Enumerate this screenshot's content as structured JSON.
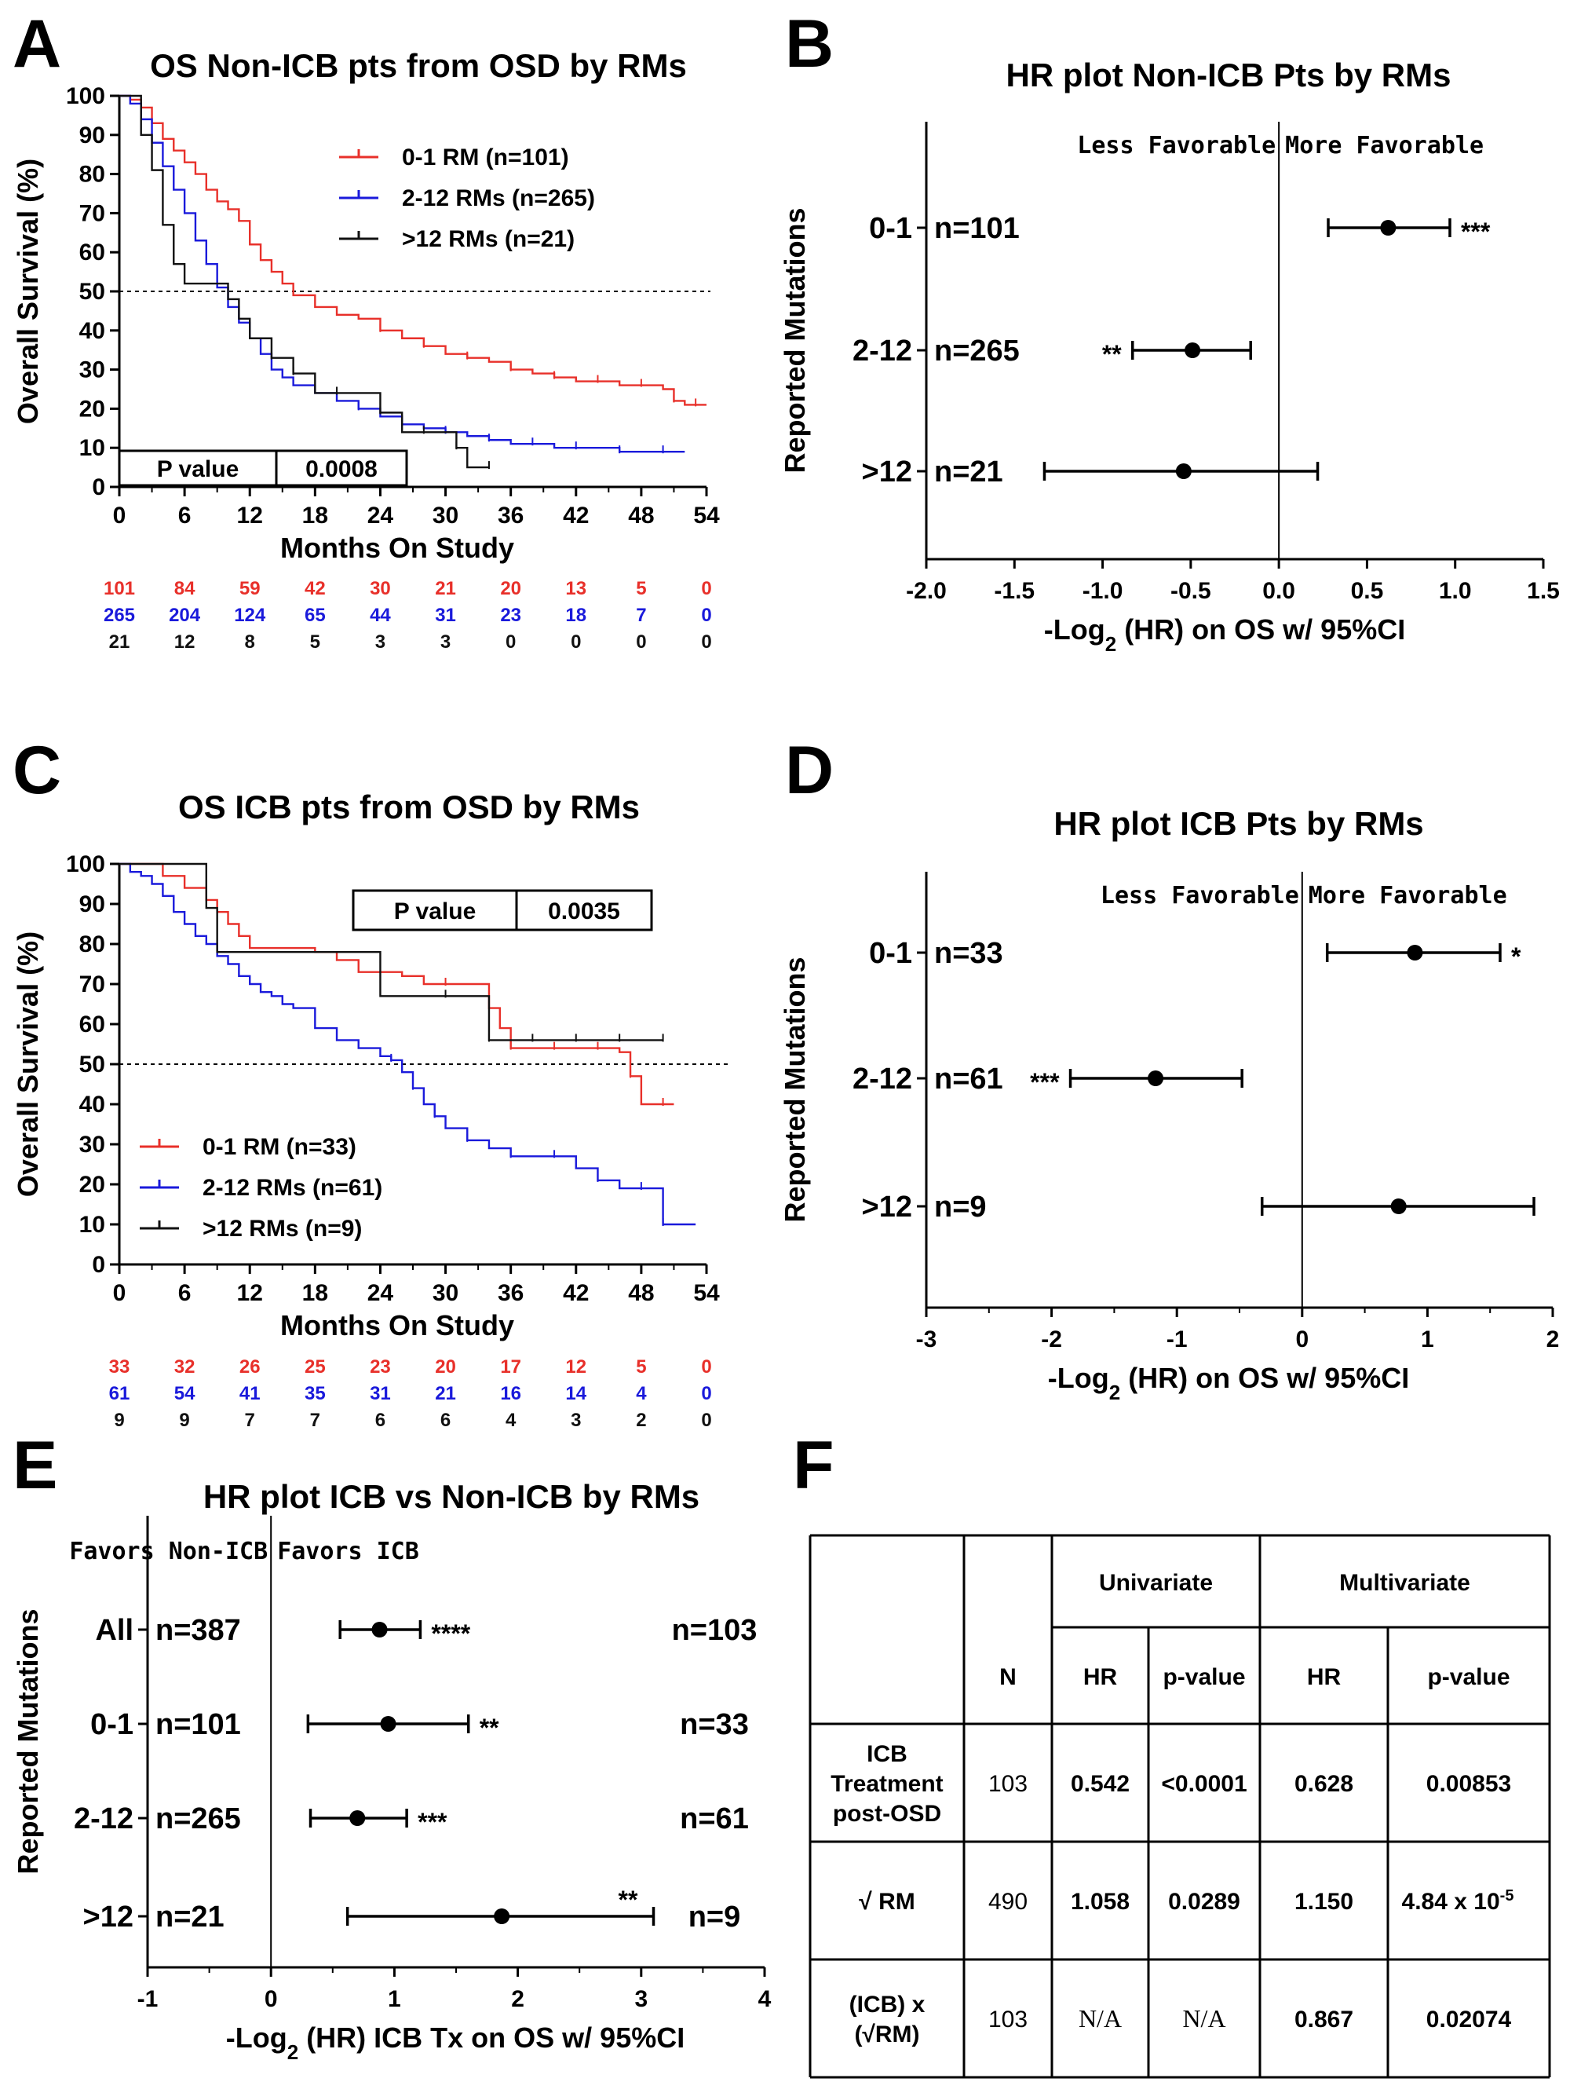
{
  "chart_data": [
    {
      "id": "A",
      "type": "line",
      "panel_letter": "A",
      "title": "OS Non-ICB pts from OSD by RMs",
      "xlabel": "Months On Study",
      "ylabel": "Overall Survival (%)",
      "xlim": [
        0,
        54
      ],
      "ylim": [
        0,
        100
      ],
      "xticks": [
        0,
        6,
        12,
        18,
        24,
        30,
        36,
        42,
        48,
        54
      ],
      "yticks": [
        0,
        10,
        20,
        30,
        40,
        50,
        60,
        70,
        80,
        90,
        100
      ],
      "reference_line_y": 50,
      "legend_placement": "top-right",
      "p_value_label": "P value",
      "p_value": "0.0008",
      "series": [
        {
          "name": "0-1 RM (n=101)",
          "color": "#e8302a",
          "x": [
            0,
            1,
            2,
            3,
            4,
            5,
            6,
            7,
            8,
            9,
            10,
            11,
            12,
            13,
            14,
            15,
            16,
            18,
            20,
            22,
            24,
            26,
            28,
            30,
            32,
            34,
            36,
            38,
            40,
            42,
            44,
            46,
            48,
            50,
            51,
            52,
            53,
            54
          ],
          "y": [
            100,
            99,
            97,
            93,
            89,
            86,
            83,
            80,
            76,
            73,
            71,
            68,
            62,
            58,
            55,
            52,
            49,
            46,
            44,
            43,
            40,
            38,
            36,
            34,
            33,
            32,
            30,
            29,
            28,
            27,
            27,
            26,
            26,
            25,
            22,
            21,
            21,
            21
          ],
          "at_risk": [
            101,
            84,
            59,
            42,
            30,
            21,
            20,
            13,
            5,
            0
          ]
        },
        {
          "name": "2-12 RMs (n=265)",
          "color": "#1a1adb",
          "x": [
            0,
            1,
            2,
            3,
            4,
            5,
            6,
            7,
            8,
            9,
            10,
            11,
            12,
            13,
            14,
            15,
            16,
            18,
            20,
            22,
            24,
            26,
            28,
            30,
            32,
            34,
            36,
            38,
            40,
            42,
            44,
            46,
            48,
            50,
            52
          ],
          "y": [
            100,
            98,
            94,
            88,
            82,
            76,
            70,
            63,
            57,
            51,
            46,
            42,
            38,
            34,
            30,
            28,
            26,
            24,
            22,
            20,
            18,
            16,
            15,
            14,
            13,
            12,
            11,
            11,
            10,
            10,
            10,
            9,
            9,
            9,
            9
          ],
          "at_risk": [
            265,
            204,
            124,
            65,
            44,
            31,
            23,
            18,
            7,
            0
          ]
        },
        {
          "name": ">12 RMs (n=21)",
          "color": "#111111",
          "x": [
            0,
            1,
            2,
            3,
            4,
            5,
            6,
            7,
            8,
            9,
            10,
            11,
            12,
            13,
            14,
            15,
            16,
            18,
            20,
            22,
            24,
            26,
            28,
            30,
            31,
            32,
            34
          ],
          "y": [
            100,
            100,
            90,
            81,
            67,
            57,
            52,
            52,
            52,
            52,
            48,
            43,
            38,
            38,
            33,
            33,
            29,
            24,
            24,
            24,
            19,
            14,
            14,
            14,
            10,
            5,
            5
          ],
          "at_risk": [
            21,
            12,
            8,
            5,
            3,
            3,
            0,
            0,
            0,
            0
          ]
        }
      ]
    },
    {
      "id": "B",
      "type": "scatter",
      "panel_letter": "B",
      "title": "HR plot Non-ICB Pts by RMs",
      "xlabel_main": "-Log",
      "xlabel_sub": "2",
      "xlabel_rest": " (HR) on OS w/ 95%CI",
      "ylabel": "Reported Mutations",
      "xlim": [
        -2.0,
        1.5
      ],
      "xticks": [
        "-2.0",
        "-1.5",
        "-1.0",
        "-0.5",
        "0.0",
        "0.5",
        "1.0",
        "1.5"
      ],
      "favor_left": "Less Favorable",
      "favor_right": "More Favorable",
      "rows": [
        {
          "label": "0-1",
          "n": "n=101",
          "value": 0.62,
          "low": 0.28,
          "high": 0.97,
          "stars": "***"
        },
        {
          "label": "2-12",
          "n": "n=265",
          "value": -0.49,
          "low": -0.83,
          "high": -0.16,
          "stars": "**"
        },
        {
          "label": ">12",
          "n": "n=21",
          "value": -0.54,
          "low": -1.33,
          "high": 0.22,
          "stars": ""
        }
      ]
    },
    {
      "id": "C",
      "type": "line",
      "panel_letter": "C",
      "title": "OS ICB pts from OSD by RMs",
      "xlabel": "Months On Study",
      "ylabel": "Overall Survival (%)",
      "xlim": [
        0,
        54
      ],
      "ylim": [
        0,
        100
      ],
      "xticks": [
        0,
        6,
        12,
        18,
        24,
        30,
        36,
        42,
        48,
        54
      ],
      "yticks": [
        0,
        10,
        20,
        30,
        40,
        50,
        60,
        70,
        80,
        90,
        100
      ],
      "reference_line_y": 50,
      "legend_placement": "bottom-left",
      "p_value_label": "P value",
      "p_value": "0.0035",
      "series": [
        {
          "name": "0-1 RM (n=33)",
          "color": "#e8302a",
          "x": [
            0,
            2,
            4,
            6,
            8,
            9,
            10,
            11,
            12,
            14,
            16,
            18,
            20,
            22,
            24,
            26,
            28,
            30,
            32,
            34,
            35,
            36,
            38,
            40,
            42,
            44,
            46,
            47,
            48,
            50,
            51
          ],
          "y": [
            100,
            100,
            97,
            94,
            91,
            88,
            85,
            82,
            79,
            79,
            79,
            78,
            76,
            73,
            73,
            72,
            70,
            70,
            70,
            64,
            59,
            54,
            54,
            54,
            54,
            54,
            53,
            47,
            40,
            40,
            40
          ],
          "at_risk": [
            33,
            32,
            26,
            25,
            23,
            20,
            17,
            12,
            5,
            0
          ]
        },
        {
          "name": "2-12 RMs (n=61)",
          "color": "#1a1adb",
          "x": [
            0,
            1,
            2,
            3,
            4,
            5,
            6,
            7,
            8,
            9,
            10,
            11,
            12,
            13,
            14,
            15,
            16,
            18,
            20,
            22,
            24,
            25,
            26,
            27,
            28,
            29,
            30,
            32,
            34,
            36,
            38,
            40,
            42,
            44,
            46,
            48,
            49,
            50,
            53
          ],
          "y": [
            100,
            98,
            97,
            95,
            92,
            88,
            85,
            82,
            80,
            77,
            75,
            72,
            70,
            68,
            67,
            65,
            64,
            59,
            56,
            54,
            52,
            51,
            48,
            44,
            40,
            37,
            34,
            31,
            29,
            27,
            27,
            27,
            24,
            21,
            19,
            19,
            19,
            10,
            10
          ],
          "at_risk": [
            61,
            54,
            41,
            35,
            31,
            21,
            16,
            14,
            4,
            0
          ]
        },
        {
          "name": ">12 RMs (n=9)",
          "color": "#111111",
          "x": [
            0,
            2,
            4,
            6,
            8,
            9,
            12,
            16,
            18,
            20,
            24,
            26,
            28,
            30,
            33,
            34,
            36,
            38,
            40,
            42,
            44,
            46,
            48,
            50
          ],
          "y": [
            100,
            100,
            100,
            100,
            89,
            78,
            78,
            78,
            78,
            78,
            67,
            67,
            67,
            67,
            67,
            56,
            56,
            56,
            56,
            56,
            56,
            56,
            56,
            56
          ],
          "at_risk": [
            9,
            9,
            7,
            7,
            6,
            6,
            4,
            3,
            2,
            0
          ]
        }
      ]
    },
    {
      "id": "D",
      "type": "scatter",
      "panel_letter": "D",
      "title": "HR plot ICB Pts by RMs",
      "xlabel_main": "-Log",
      "xlabel_sub": "2",
      "xlabel_rest": " (HR) on OS w/ 95%CI",
      "ylabel": "Reported Mutations",
      "xlim": [
        -3,
        2
      ],
      "xticks": [
        "-3",
        "-2",
        "-1",
        "0",
        "1",
        "2"
      ],
      "favor_left": "Less Favorable",
      "favor_right": "More Favorable",
      "rows": [
        {
          "label": "0-1",
          "n": "n=33",
          "value": 0.9,
          "low": 0.2,
          "high": 1.58,
          "stars": "*"
        },
        {
          "label": "2-12",
          "n": "n=61",
          "value": -1.17,
          "low": -1.85,
          "high": -0.48,
          "stars": "***"
        },
        {
          "label": ">12",
          "n": "n=9",
          "value": 0.77,
          "low": -0.32,
          "high": 1.85,
          "stars": ""
        }
      ]
    },
    {
      "id": "E",
      "type": "scatter",
      "panel_letter": "E",
      "title": "HR plot ICB vs Non-ICB by RMs",
      "xlabel": "-Log",
      "xlabel_sub": "2",
      "xlabel_rest": " (HR) ICB Tx on OS w/ 95%CI",
      "ylabel": "Reported Mutations",
      "xlim": [
        -1,
        4
      ],
      "xticks": [
        "-1",
        "0",
        "1",
        "2",
        "3",
        "4"
      ],
      "favor_left": "Favors Non-ICB",
      "favor_right": "Favors ICB",
      "rows": [
        {
          "label": "All",
          "n_left": "n=387",
          "n_right": "n=103",
          "value": 0.88,
          "low": 0.56,
          "high": 1.21,
          "stars": "****"
        },
        {
          "label": "0-1",
          "n_left": "n=101",
          "n_right": "n=33",
          "value": 0.95,
          "low": 0.3,
          "high": 1.6,
          "stars": "**"
        },
        {
          "label": "2-12",
          "n_left": "n=265",
          "n_right": "n=61",
          "value": 0.7,
          "low": 0.32,
          "high": 1.1,
          "stars": "***"
        },
        {
          "label": ">12",
          "n_left": "n=21",
          "n_right": "n=9",
          "value": 1.87,
          "low": 0.62,
          "high": 3.1,
          "stars": "**"
        }
      ]
    },
    {
      "id": "F",
      "type": "table",
      "panel_letter": "F",
      "header_group": [
        "Univariate",
        "Multivariate"
      ],
      "columns": [
        "N",
        "HR",
        "p-value",
        "HR",
        "p-value"
      ],
      "rows": [
        {
          "label": [
            "ICB",
            "Treatment",
            "post-OSD"
          ],
          "cells": [
            "103",
            "0.542",
            "<0.0001",
            "0.628",
            "0.00853"
          ]
        },
        {
          "label": [
            "√ RM"
          ],
          "cells": [
            "490",
            "1.058",
            "0.0289",
            "1.150",
            "4.84 x 10"
          ],
          "exp": "-5"
        },
        {
          "label": [
            "(ICB) x",
            "(√RM)"
          ],
          "cells": [
            "103",
            "N/A",
            "N/A",
            "0.867",
            "0.02074"
          ]
        }
      ]
    }
  ]
}
